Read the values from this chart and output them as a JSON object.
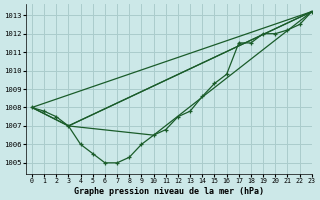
{
  "title": "Graphe pression niveau de la mer (hPa)",
  "background_color": "#cce8e8",
  "grid_color": "#aacccc",
  "line_color": "#1a5c2a",
  "xlim": [
    -0.5,
    23
  ],
  "ylim": [
    1004.4,
    1013.6
  ],
  "yticks": [
    1005,
    1006,
    1007,
    1008,
    1009,
    1010,
    1011,
    1012,
    1013
  ],
  "xticks": [
    0,
    1,
    2,
    3,
    4,
    5,
    6,
    7,
    8,
    9,
    10,
    11,
    12,
    13,
    14,
    15,
    16,
    17,
    18,
    19,
    20,
    21,
    22,
    23
  ],
  "curve_x": [
    0,
    1,
    2,
    3,
    4,
    5,
    6,
    7,
    8,
    9,
    10,
    11,
    12,
    13,
    14,
    15,
    16,
    17,
    18,
    19,
    20,
    21,
    22,
    23
  ],
  "curve_y": [
    1008.0,
    1007.8,
    1007.5,
    1007.0,
    1006.0,
    1005.5,
    1005.0,
    1005.0,
    1005.3,
    1006.0,
    1006.5,
    1006.8,
    1007.5,
    1007.8,
    1008.6,
    1009.3,
    1009.8,
    1011.5,
    1011.5,
    1012.0,
    1012.0,
    1012.2,
    1012.5,
    1013.2
  ],
  "line1_x": [
    0,
    23
  ],
  "line1_y": [
    1008.0,
    1013.2
  ],
  "line2_x": [
    0,
    3,
    23
  ],
  "line2_y": [
    1008.0,
    1007.0,
    1013.2
  ],
  "line3_x": [
    0,
    3,
    10,
    23
  ],
  "line3_y": [
    1008.0,
    1007.0,
    1006.5,
    1013.2
  ],
  "line4_x": [
    3,
    23
  ],
  "line4_y": [
    1007.0,
    1013.2
  ]
}
